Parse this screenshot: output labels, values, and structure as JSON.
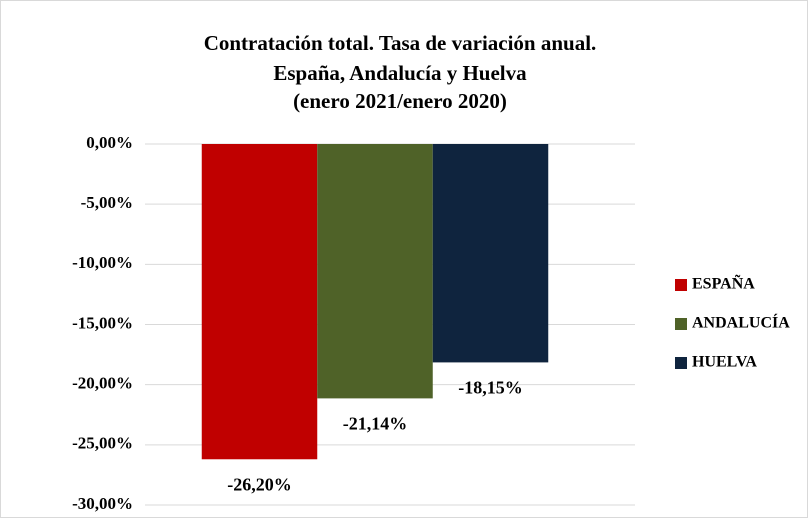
{
  "chart_data": {
    "type": "bar",
    "title": [
      "Contratación total. Tasa de variación anual.",
      "España, Andalucía y Huelva",
      "(enero 2021/enero 2020)"
    ],
    "categories": [
      null
    ],
    "series": [
      {
        "name": "ESPAÑA",
        "color": "#c00000",
        "values": [
          -26.2
        ],
        "value_labels": [
          "-26,20%"
        ]
      },
      {
        "name": "ANDALUCÍA",
        "color": "#4f6228",
        "values": [
          -21.14
        ],
        "value_labels": [
          "-21,14%"
        ]
      },
      {
        "name": "HUELVA",
        "color": "#0f243e",
        "values": [
          -18.15
        ],
        "value_labels": [
          "-18,15%"
        ]
      }
    ],
    "ylim": [
      -30,
      0
    ],
    "yticks": [
      {
        "value": 0,
        "label": "0,00%"
      },
      {
        "value": -5,
        "label": "-5,00%"
      },
      {
        "value": -10,
        "label": "-10,00%"
      },
      {
        "value": -15,
        "label": "-15,00%"
      },
      {
        "value": -20,
        "label": "-20,00%"
      },
      {
        "value": -25,
        "label": "-25,00%"
      },
      {
        "value": -30,
        "label": "-30,00%"
      }
    ],
    "grid": true,
    "legend": "right"
  }
}
